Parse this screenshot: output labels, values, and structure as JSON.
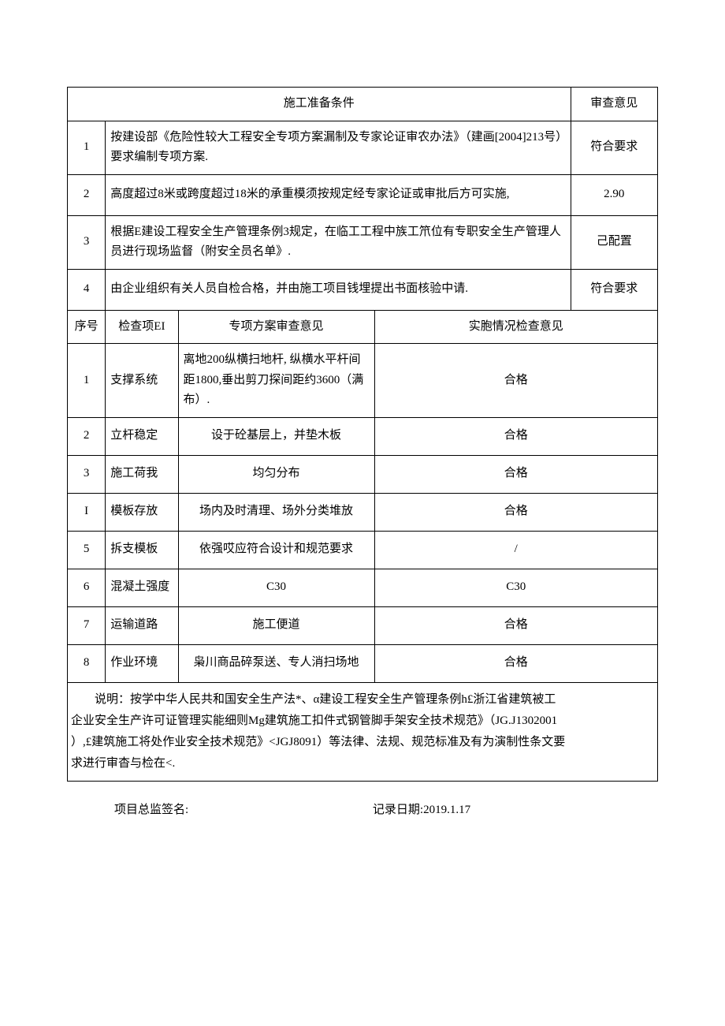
{
  "header": {
    "prep_title": "施工准备条件",
    "review_title": "审查意见"
  },
  "prep": [
    {
      "num": "1",
      "text": "按建设部《危险性较大工程安全专项方案漏制及专家论证审农办法》（建画[2004]213号）要求编制专项方案.",
      "review": "符合要求"
    },
    {
      "num": "2",
      "text": "高度超过8米或跨度超过18米的承重模须按规定经专家论证或审批后方可实施,",
      "review": "2.90"
    },
    {
      "num": "3",
      "text": "根据E建设工程安全生产管理条例3规定，在临工工程中族工笊位有专职安全生产管理人员进行现场监督（附安全员名单》.",
      "review": "己配置"
    },
    {
      "num": "4",
      "text": "由企业组织有关人员自检合格，并由施工项目钱埋提出书面核验中请.",
      "review": "符合要求"
    }
  ],
  "check_header": {
    "num": "序号",
    "item": "检查项EI",
    "opinion": "专项方案审查意见",
    "check": "实胞情况检查意见"
  },
  "checks": [
    {
      "num": "1",
      "item": "支撑系统",
      "opinion": "离地200纵横扫地杆, 纵横水平杆间距1800,垂出剪刀探间距约3600（满布）.",
      "check": "合格",
      "tall": true
    },
    {
      "num": "2",
      "item": "立杆稳定",
      "opinion": "设于砼基层上，并垫木板",
      "check": "合格"
    },
    {
      "num": "3",
      "item": "施工荷我",
      "opinion": "均匀分布",
      "check": "合格"
    },
    {
      "num": "I",
      "item": "模板存放",
      "opinion": "场内及时清理、场外分类堆放",
      "check": "合格"
    },
    {
      "num": "5",
      "item": "拆支模板",
      "opinion": "依强哎应符合设计和规范要求",
      "check": "/"
    },
    {
      "num": "6",
      "item": "混凝土强度",
      "opinion": "C30",
      "check": "C30"
    },
    {
      "num": "7",
      "item": "运输道路",
      "opinion": "施工便道",
      "check": "合格"
    },
    {
      "num": "8",
      "item": "作业环境",
      "opinion": "枭川商品碎泵送、专人消扫场地",
      "check": "合格"
    }
  ],
  "explain": {
    "line1": "说明：按学中华人民共和国安全生产法*、α建设工程安全生产管理条例h£浙江省建筑被工",
    "line2": "企业安全生产许可证管理实能细则Mg建筑施工扣件式钢管脚手架安全技术规范》（JG.J1302001",
    "line3": "）,£建筑施工将处作业安全技术规范》<JGJ8091）等法律、法规、规范标准及有为演制性条文要",
    "line4": "求进行审杳与检在<."
  },
  "footer": {
    "sign_label": "项目总监签名:",
    "date_label": "记录日期:",
    "date_value": "2019.1.17"
  }
}
